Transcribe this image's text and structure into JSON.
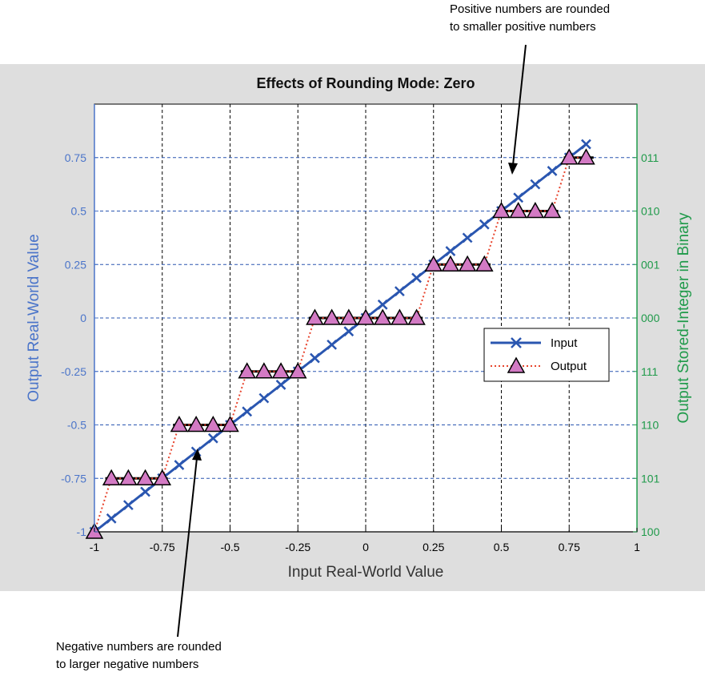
{
  "annotations": {
    "positive_line1": "Positive numbers are rounded",
    "positive_line2": "to smaller positive numbers",
    "negative_line1": "Negative numbers are rounded",
    "negative_line2": "to larger negative numbers"
  },
  "colors": {
    "figure_bg": "#dedede",
    "left_axis": "#4a74c9",
    "right_axis": "#1f9a4a",
    "input_line": "#2a56b0",
    "output_line": "#e8452e",
    "output_marker": "#d37ac4",
    "step_bar": "#000000",
    "vertical_grid": "#000000",
    "horizontal_grid": "#2a56b0"
  },
  "chart_data": {
    "type": "line",
    "title": "Effects of Rounding Mode: Zero",
    "xlabel": "Input Real-World Value",
    "ylabel_left": "Output Real-World Value",
    "ylabel_right": "Output Stored-Integer in Binary",
    "xlim": [
      -1,
      1
    ],
    "ylim": [
      -1,
      1
    ],
    "x_ticks": [
      -1,
      -0.75,
      -0.5,
      -0.25,
      0,
      0.25,
      0.5,
      0.75,
      1
    ],
    "x_tick_labels": [
      "-1",
      "-0.75",
      "-0.5",
      "-0.25",
      "0",
      "0.25",
      "0.5",
      "0.75",
      "1"
    ],
    "y_ticks": [
      -1,
      -0.75,
      -0.5,
      -0.25,
      0,
      0.25,
      0.5,
      0.75
    ],
    "y_tick_labels": [
      "-1",
      "-0.75",
      "-0.5",
      "-0.25",
      "0",
      "0.25",
      "0.5",
      "0.75"
    ],
    "y_right_tick_labels": [
      "100",
      "101",
      "110",
      "111",
      "000",
      "001",
      "010",
      "011"
    ],
    "grid": "dashed",
    "legend_position": "right",
    "series": [
      {
        "name": "Input",
        "marker": "x",
        "line": "solid",
        "x": [
          -1,
          -0.9375,
          -0.875,
          -0.8125,
          -0.75,
          -0.6875,
          -0.625,
          -0.5625,
          -0.5,
          -0.4375,
          -0.375,
          -0.3125,
          -0.25,
          -0.1875,
          -0.125,
          -0.0625,
          0,
          0.0625,
          0.125,
          0.1875,
          0.25,
          0.3125,
          0.375,
          0.4375,
          0.5,
          0.5625,
          0.625,
          0.6875,
          0.75,
          0.8125
        ],
        "y": [
          -1,
          -0.9375,
          -0.875,
          -0.8125,
          -0.75,
          -0.6875,
          -0.625,
          -0.5625,
          -0.5,
          -0.4375,
          -0.375,
          -0.3125,
          -0.25,
          -0.1875,
          -0.125,
          -0.0625,
          0,
          0.0625,
          0.125,
          0.1875,
          0.25,
          0.3125,
          0.375,
          0.4375,
          0.5,
          0.5625,
          0.625,
          0.6875,
          0.75,
          0.8125
        ]
      },
      {
        "name": "Output",
        "marker": "triangle",
        "line": "dotted",
        "x": [
          -1,
          -0.9375,
          -0.875,
          -0.8125,
          -0.75,
          -0.6875,
          -0.625,
          -0.5625,
          -0.5,
          -0.4375,
          -0.375,
          -0.3125,
          -0.25,
          -0.1875,
          -0.125,
          -0.0625,
          0,
          0.0625,
          0.125,
          0.1875,
          0.25,
          0.3125,
          0.375,
          0.4375,
          0.5,
          0.5625,
          0.625,
          0.6875,
          0.75,
          0.8125
        ],
        "y": [
          -1,
          -0.75,
          -0.75,
          -0.75,
          -0.75,
          -0.5,
          -0.5,
          -0.5,
          -0.5,
          -0.25,
          -0.25,
          -0.25,
          -0.25,
          0,
          0,
          0,
          0,
          0,
          0,
          0,
          0.25,
          0.25,
          0.25,
          0.25,
          0.5,
          0.5,
          0.5,
          0.5,
          0.75,
          0.75
        ]
      }
    ],
    "step_bars": [
      {
        "y": -0.75,
        "x_from": -0.96,
        "x_to": -0.73
      },
      {
        "y": -0.5,
        "x_from": -0.71,
        "x_to": -0.48
      },
      {
        "y": -0.25,
        "x_from": -0.46,
        "x_to": -0.23
      },
      {
        "y": 0,
        "x_from": -0.21,
        "x_to": 0.21
      },
      {
        "y": 0.25,
        "x_from": 0.23,
        "x_to": 0.46
      },
      {
        "y": 0.5,
        "x_from": 0.48,
        "x_to": 0.71
      },
      {
        "y": 0.75,
        "x_from": 0.73,
        "x_to": 0.84
      }
    ]
  }
}
